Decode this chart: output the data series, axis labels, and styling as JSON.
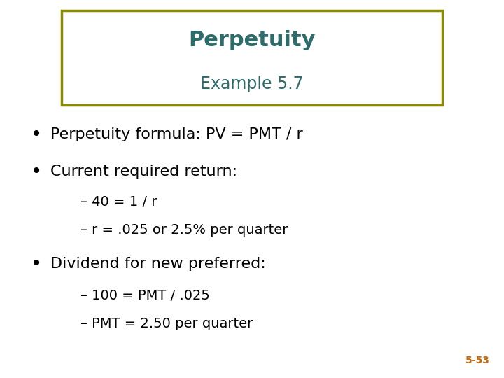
{
  "title": "Perpetuity",
  "subtitle": "Example 5.7",
  "title_color": "#2E6B6B",
  "subtitle_color": "#2E6B6B",
  "box_border_color": "#8B8B00",
  "background_color": "#FFFFFF",
  "bullet_points": [
    "Perpetuity formula: PV = PMT / r",
    "Current required return:"
  ],
  "sub_bullets_1": [
    "– 40 = 1 / r",
    "– r = .025 or 2.5% per quarter"
  ],
  "bullet_points_2": [
    "Dividend for new preferred:"
  ],
  "sub_bullets_2": [
    "– 100 = PMT / .025",
    "– PMT = 2.50 per quarter"
  ],
  "page_number": "5-53",
  "page_number_color": "#CC6600",
  "bullet_color": "#000000",
  "sub_bullet_color": "#000000",
  "title_fontsize": 22,
  "subtitle_fontsize": 17,
  "bullet_fontsize": 16,
  "sub_bullet_fontsize": 14,
  "page_num_fontsize": 10
}
